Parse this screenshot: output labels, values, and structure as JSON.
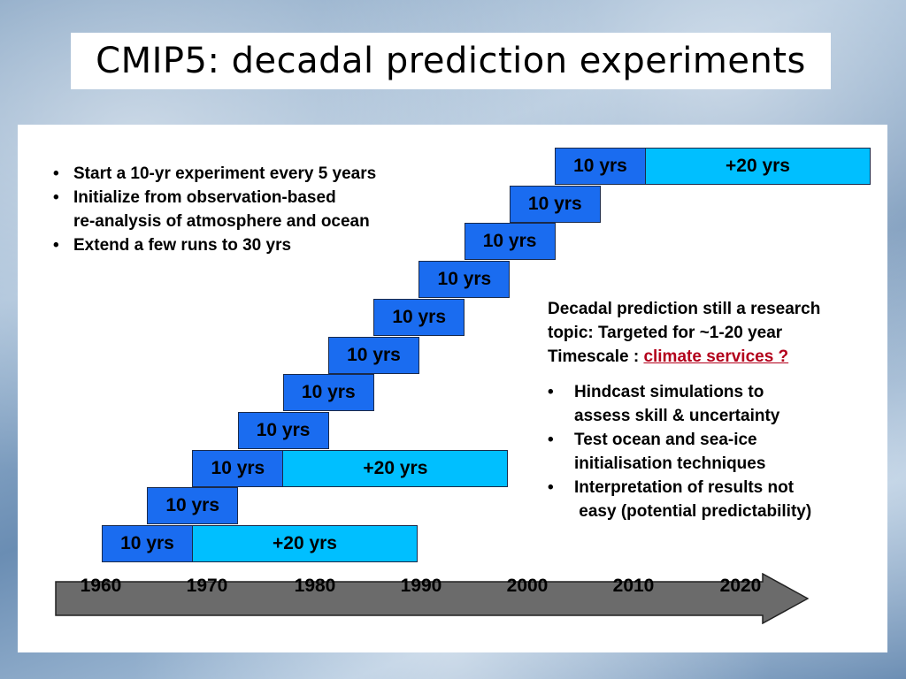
{
  "title": "CMIP5: decadal prediction experiments",
  "left_bullets": [
    "Start a 10-yr experiment every 5 years",
    "Initialize from observation-based",
    "Extend a few runs to 30 yrs"
  ],
  "left_bullet_cont": "re-analysis of atmosphere and ocean",
  "note": {
    "line1": "Decadal prediction still a research",
    "line2": "topic: Targeted for  ~1-20 year",
    "line3_prefix": "Timescale : ",
    "line3_highlight": "climate services ?"
  },
  "right_bullets": [
    {
      "line1": "Hindcast simulations to",
      "line2": "assess skill & uncertainty"
    },
    {
      "line1": "Test ocean and sea-ice",
      "line2": "initialisation techniques"
    },
    {
      "line1": "Interpretation of results not",
      "line2": " easy (potential predictability)"
    }
  ],
  "colors": {
    "base_bar": "#1a6cf0",
    "extension_bar": "#00bfff",
    "highlight": "#b3001b",
    "axis_arrow": "#6b6b6b"
  },
  "timeline": {
    "years": [
      "1960",
      "1970",
      "1980",
      "1990",
      "2000",
      "2010",
      "2020"
    ],
    "runs": [
      {
        "label": "10 yrs",
        "extension": "+20 yrs"
      },
      {
        "label": "10 yrs"
      },
      {
        "label": "10 yrs",
        "extension": "+20 yrs"
      },
      {
        "label": "10 yrs"
      },
      {
        "label": "10 yrs"
      },
      {
        "label": "10 yrs"
      },
      {
        "label": "10 yrs"
      },
      {
        "label": "10 yrs"
      },
      {
        "label": "10 yrs"
      },
      {
        "label": "10 yrs"
      },
      {
        "label": "10 yrs",
        "extension": "+20 yrs"
      }
    ]
  }
}
